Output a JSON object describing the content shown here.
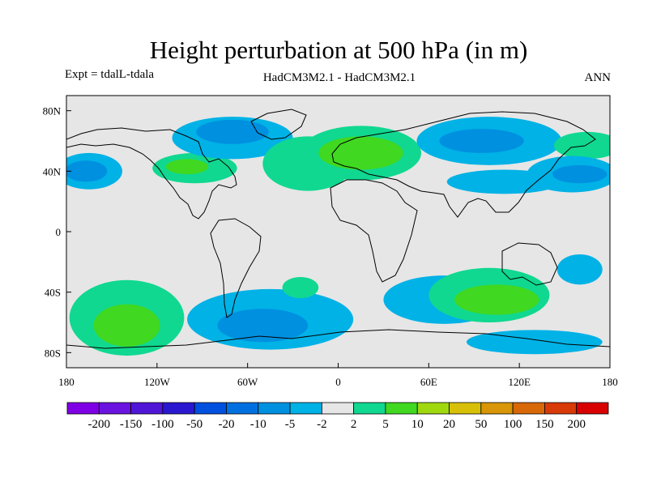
{
  "chart_data": {
    "type": "heatmap",
    "title": "Height perturbation at 500 hPa (in m)",
    "subtitle_left": "Expt = tdalL-tdala",
    "subtitle_center": "HadCM3M2.1 - HadCM3M2.1",
    "subtitle_right": "ANN",
    "x_ticks": [
      "180",
      "120W",
      "60W",
      "0",
      "60E",
      "120E",
      "180"
    ],
    "x_tick_values": [
      -180,
      -120,
      -60,
      0,
      60,
      120,
      180
    ],
    "y_ticks": [
      "80N",
      "40N",
      "0",
      "40S",
      "80S"
    ],
    "y_tick_values": [
      80,
      40,
      0,
      -40,
      -80
    ],
    "xlim": [
      -180,
      180
    ],
    "ylim": [
      -90,
      90
    ],
    "colorbar": {
      "labels": [
        "-200",
        "-150",
        "-100",
        "-50",
        "-20",
        "-10",
        "-5",
        "-2",
        "2",
        "5",
        "10",
        "20",
        "50",
        "100",
        "150",
        "200"
      ],
      "colors": [
        "#8000e6",
        "#6a13e0",
        "#5016d8",
        "#2a18d0",
        "#0050e0",
        "#0070e0",
        "#0090e0",
        "#00b2e6",
        "#e6e6e6",
        "#10d890",
        "#40d820",
        "#a0d810",
        "#d8c008",
        "#d89608",
        "#d86808",
        "#d83a08",
        "#d80000"
      ]
    },
    "field_colors": {
      "background": "#e6e6e6",
      "pos_small": "#10d890",
      "pos_mid": "#40d820",
      "neg_small": "#00b2e6",
      "neg_mid": "#0090e0",
      "neg_large": "#0070e0"
    },
    "anomalies": [
      {
        "name": "n-pacific-low",
        "lon": -165,
        "lat": 40,
        "rlon": 22,
        "rlat": 12,
        "level": "neg_small"
      },
      {
        "name": "n-pacific-low-core",
        "lon": -167,
        "lat": 40,
        "rlon": 14,
        "rlat": 7,
        "level": "neg_mid"
      },
      {
        "name": "n-america-high",
        "lon": -95,
        "lat": 42,
        "rlon": 28,
        "rlat": 10,
        "level": "pos_small"
      },
      {
        "name": "n-america-high-core",
        "lon": -100,
        "lat": 43,
        "rlon": 14,
        "rlat": 5,
        "level": "pos_mid"
      },
      {
        "name": "canada-low",
        "lon": -70,
        "lat": 62,
        "rlon": 40,
        "rlat": 14,
        "level": "neg_small"
      },
      {
        "name": "canada-low-core",
        "lon": -70,
        "lat": 66,
        "rlon": 24,
        "rlat": 8,
        "level": "neg_mid"
      },
      {
        "name": "atlantic-high",
        "lon": -20,
        "lat": 45,
        "rlon": 30,
        "rlat": 18,
        "level": "pos_small"
      },
      {
        "name": "europe-high",
        "lon": 15,
        "lat": 52,
        "rlon": 40,
        "rlat": 18,
        "level": "pos_small"
      },
      {
        "name": "europe-high-core",
        "lon": 15,
        "lat": 52,
        "rlon": 28,
        "rlat": 11,
        "level": "pos_mid"
      },
      {
        "name": "siberia-low",
        "lon": 100,
        "lat": 60,
        "rlon": 48,
        "rlat": 16,
        "level": "neg_small"
      },
      {
        "name": "siberia-low-core",
        "lon": 95,
        "lat": 60,
        "rlon": 28,
        "rlat": 8,
        "level": "neg_mid"
      },
      {
        "name": "asia-low",
        "lon": 110,
        "lat": 33,
        "rlon": 38,
        "rlat": 8,
        "level": "neg_small"
      },
      {
        "name": "nw-pacific-high",
        "lon": 165,
        "lat": 57,
        "rlon": 22,
        "rlat": 9,
        "level": "pos_small"
      },
      {
        "name": "nw-pacific-low",
        "lon": 155,
        "lat": 38,
        "rlon": 30,
        "rlat": 12,
        "level": "neg_small"
      },
      {
        "name": "nw-pacific-low-core",
        "lon": 160,
        "lat": 38,
        "rlon": 18,
        "rlat": 6,
        "level": "neg_mid"
      },
      {
        "name": "s-pacific-high",
        "lon": -140,
        "lat": -57,
        "rlon": 38,
        "rlat": 25,
        "level": "pos_small"
      },
      {
        "name": "s-pacific-high-core",
        "lon": -140,
        "lat": -62,
        "rlon": 22,
        "rlat": 14,
        "level": "pos_mid"
      },
      {
        "name": "s-america-low",
        "lon": -45,
        "lat": -58,
        "rlon": 55,
        "rlat": 20,
        "level": "neg_small"
      },
      {
        "name": "s-america-low-core",
        "lon": -50,
        "lat": -62,
        "rlon": 30,
        "rlat": 11,
        "level": "neg_mid"
      },
      {
        "name": "s-atlantic-high",
        "lon": -25,
        "lat": -37,
        "rlon": 12,
        "rlat": 7,
        "level": "pos_small"
      },
      {
        "name": "s-indian-low",
        "lon": 70,
        "lat": -45,
        "rlon": 40,
        "rlat": 16,
        "level": "neg_small"
      },
      {
        "name": "s-indian-high",
        "lon": 100,
        "lat": -42,
        "rlon": 40,
        "rlat": 18,
        "level": "pos_small"
      },
      {
        "name": "s-indian-high-core",
        "lon": 105,
        "lat": -45,
        "rlon": 28,
        "rlat": 10,
        "level": "pos_mid"
      },
      {
        "name": "sw-pacific-low",
        "lon": 160,
        "lat": -25,
        "rlon": 15,
        "rlat": 10,
        "level": "neg_small"
      },
      {
        "name": "antarctic-low",
        "lon": 130,
        "lat": -73,
        "rlon": 45,
        "rlat": 8,
        "level": "neg_small"
      }
    ]
  }
}
